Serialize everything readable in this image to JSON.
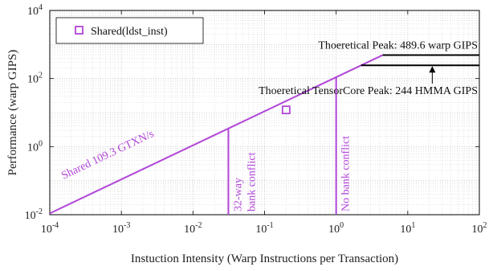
{
  "chart_data": {
    "type": "line",
    "xscale": "log",
    "yscale": "log",
    "xlim": [
      0.0001,
      100
    ],
    "ylim": [
      0.01,
      10000
    ],
    "grid": true,
    "xlabel": "Instuction Intensity (Warp Instructions per Transaction)",
    "ylabel": "Performance (warp GIPS)",
    "x_ticks": [
      {
        "value": 0.0001,
        "base": "10",
        "exp": "-4"
      },
      {
        "value": 0.001,
        "base": "10",
        "exp": "-3"
      },
      {
        "value": 0.01,
        "base": "10",
        "exp": "-2"
      },
      {
        "value": 0.1,
        "base": "10",
        "exp": "-1"
      },
      {
        "value": 1,
        "base": "10",
        "exp": "0"
      },
      {
        "value": 10,
        "base": "10",
        "exp": "1"
      },
      {
        "value": 100,
        "base": "10",
        "exp": "2"
      }
    ],
    "y_ticks": [
      {
        "value": 0.01,
        "base": "10",
        "exp": "-2"
      },
      {
        "value": 1,
        "base": "10",
        "exp": "0"
      },
      {
        "value": 100,
        "base": "10",
        "exp": "2"
      },
      {
        "value": 10000,
        "base": "10",
        "exp": "4"
      }
    ],
    "legend": {
      "label": "Shared(ldst_inst)",
      "position": "top-left",
      "marker": "square"
    },
    "colors": {
      "shared": "#b146d8",
      "peak": "#000000",
      "grid": "#c8c8c8"
    },
    "series": [
      {
        "name": "Shared(ldst_inst)",
        "kind": "points",
        "x": [
          0.2
        ],
        "y": [
          12
        ]
      }
    ],
    "rooflines": [
      {
        "kind": "shared-bandwidth",
        "label": "Shared 109.3 GTXN/s",
        "slope": 109.3,
        "x_start": 0.0001,
        "x_end": 4.48,
        "y_flat": 489.6
      },
      {
        "kind": "warp-peak",
        "label": "Thoeretical Peak: 489.6 warp GIPS",
        "y": 489.6,
        "x_start": 4.48,
        "x_end": 100
      },
      {
        "kind": "tensorcore-peak",
        "label": "Thoeretical TensorCore Peak: 244 HMMA GIPS",
        "y": 244,
        "x_start": 2.23,
        "x_end": 100
      }
    ],
    "vertical_markers": [
      {
        "x": 0.03125,
        "label_line1": "32-way",
        "label_line2": "bank conflict"
      },
      {
        "x": 1,
        "label_line1": "No bank conflict",
        "label_line2": ""
      }
    ]
  }
}
